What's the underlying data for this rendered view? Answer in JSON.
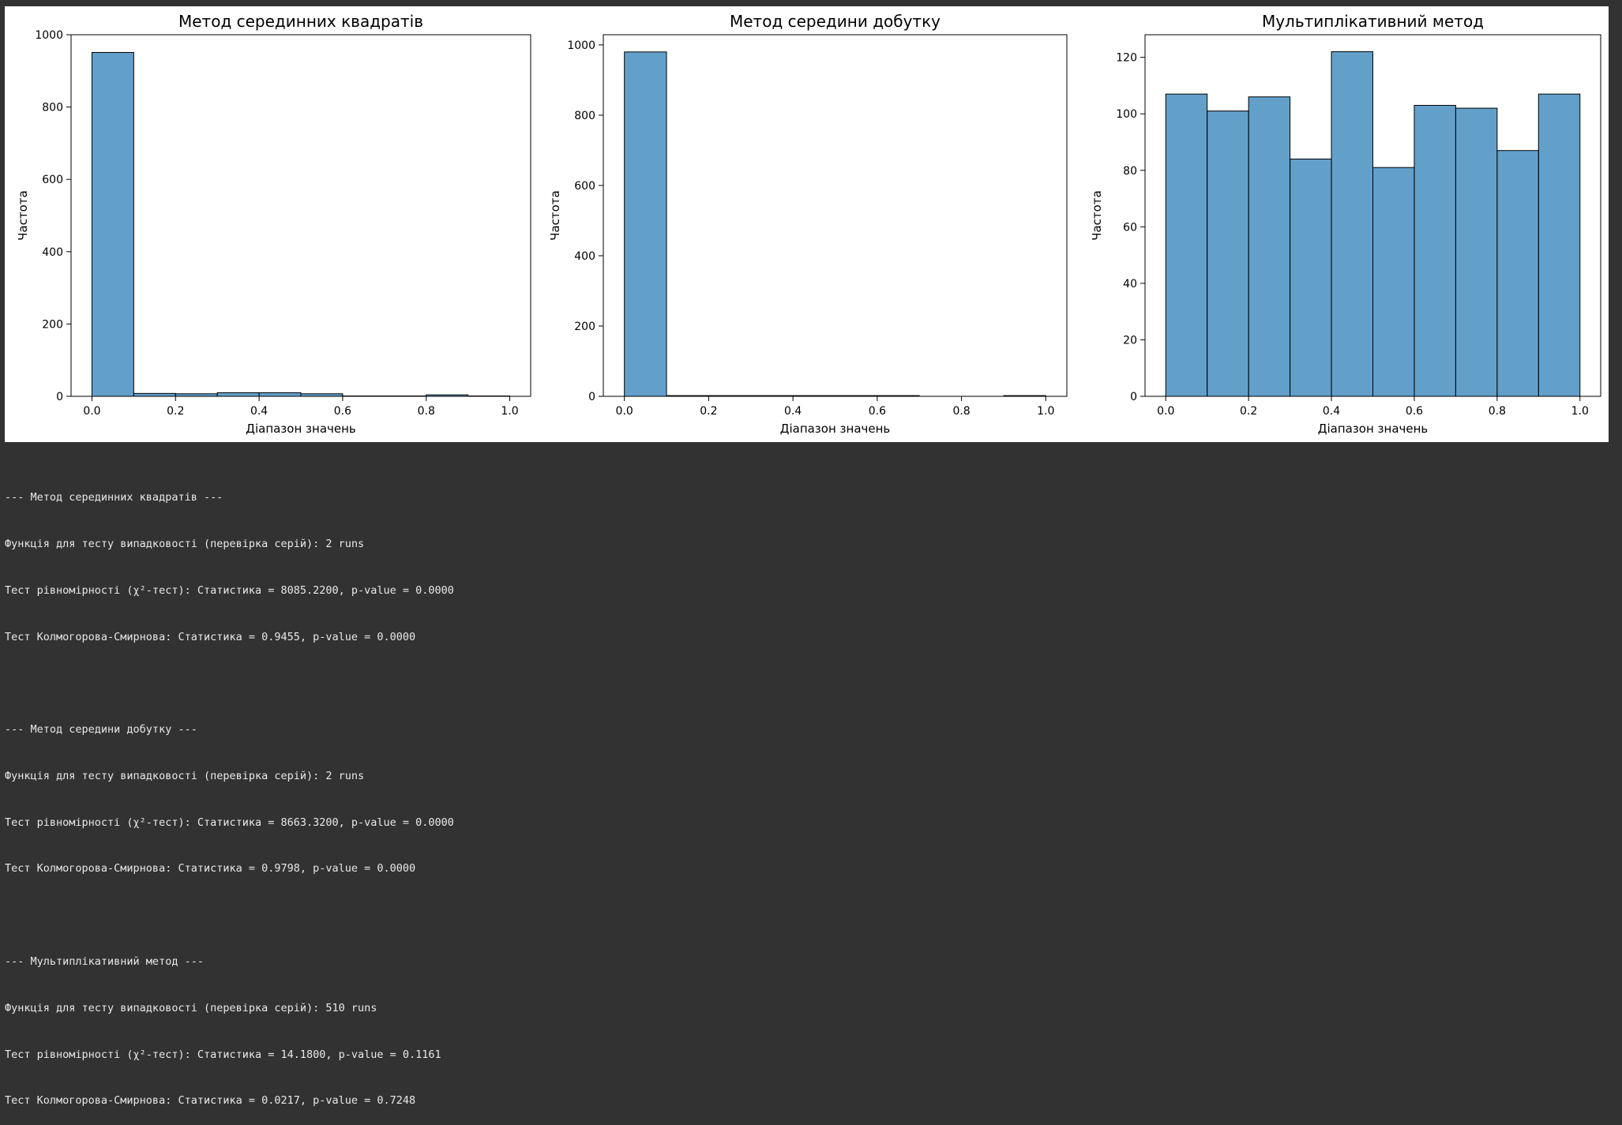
{
  "chart_data": [
    {
      "type": "bar",
      "title": "Метод серединних квадратів",
      "xlabel": "Діапазон значень",
      "ylabel": "Частота",
      "bin_edges": [
        0.0,
        0.1,
        0.2,
        0.3,
        0.4,
        0.5,
        0.6,
        0.7,
        0.8,
        0.9,
        1.0
      ],
      "values": [
        951,
        8,
        7,
        10,
        10,
        7,
        1,
        1,
        4,
        1
      ],
      "xlim": [
        -0.05,
        1.05
      ],
      "ylim": [
        0,
        1000
      ],
      "xticks": [
        0.0,
        0.2,
        0.4,
        0.6,
        0.8,
        1.0
      ],
      "xtick_labels": [
        "0.0",
        "0.2",
        "0.4",
        "0.6",
        "0.8",
        "1.0"
      ],
      "yticks": [
        0,
        200,
        400,
        600,
        800,
        1000
      ],
      "ytick_labels": [
        "0",
        "200",
        "400",
        "600",
        "800",
        "1000"
      ],
      "bar_color": "#1f77b4"
    },
    {
      "type": "bar",
      "title": "Метод середини добутку",
      "xlabel": "Діапазон значень",
      "ylabel": "Частота",
      "bin_edges": [
        0.0,
        0.1,
        0.2,
        0.3,
        0.4,
        0.5,
        0.6,
        0.7,
        0.8,
        0.9,
        1.0
      ],
      "values": [
        980,
        2,
        2,
        2,
        2,
        2,
        2,
        0,
        0,
        2
      ],
      "xlim": [
        -0.05,
        1.05
      ],
      "ylim": [
        0,
        1029
      ],
      "xticks": [
        0.0,
        0.2,
        0.4,
        0.6,
        0.8,
        1.0
      ],
      "xtick_labels": [
        "0.0",
        "0.2",
        "0.4",
        "0.6",
        "0.8",
        "1.0"
      ],
      "yticks": [
        0,
        200,
        400,
        600,
        800,
        1000
      ],
      "ytick_labels": [
        "0",
        "200",
        "400",
        "600",
        "800",
        "1000"
      ],
      "bar_color": "#1f77b4"
    },
    {
      "type": "bar",
      "title": "Мультиплікативний метод",
      "xlabel": "Діапазон значень",
      "ylabel": "Частота",
      "bin_edges": [
        0.0,
        0.1,
        0.2,
        0.3,
        0.4,
        0.5,
        0.6,
        0.7,
        0.8,
        0.9,
        1.0
      ],
      "values": [
        107,
        101,
        106,
        84,
        122,
        81,
        103,
        102,
        87,
        107
      ],
      "xlim": [
        -0.05,
        1.05
      ],
      "ylim": [
        0,
        128
      ],
      "xticks": [
        0.0,
        0.2,
        0.4,
        0.6,
        0.8,
        1.0
      ],
      "xtick_labels": [
        "0.0",
        "0.2",
        "0.4",
        "0.6",
        "0.8",
        "1.0"
      ],
      "yticks": [
        0,
        20,
        40,
        60,
        80,
        100,
        120
      ],
      "ytick_labels": [
        "0",
        "20",
        "40",
        "60",
        "80",
        "100",
        "120"
      ],
      "bar_color": "#1f77b4"
    }
  ],
  "console": {
    "lines": [
      "--- Метод серединних квадратів ---",
      "Функція для тесту випадковості (перевірка серій): 2 runs",
      "Тест рівномірності (χ²-тест): Статистика = 8085.2200, p-value = 0.0000",
      "Тест Колмогорова-Смирнова: Статистика = 0.9455, p-value = 0.0000",
      "",
      "--- Метод середини добутку ---",
      "Функція для тесту випадковості (перевірка серій): 2 runs",
      "Тест рівномірності (χ²-тест): Статистика = 8663.3200, p-value = 0.0000",
      "Тест Колмогорова-Смирнова: Статистика = 0.9798, p-value = 0.0000",
      "",
      "--- Мультиплікативний метод ---",
      "Функція для тесту випадковості (перевірка серій): 510 runs",
      "Тест рівномірності (χ²-тест): Статистика = 14.1800, p-value = 0.1161",
      "Тест Колмогорова-Смирнова: Статистика = 0.0217, p-value = 0.7248"
    ]
  }
}
